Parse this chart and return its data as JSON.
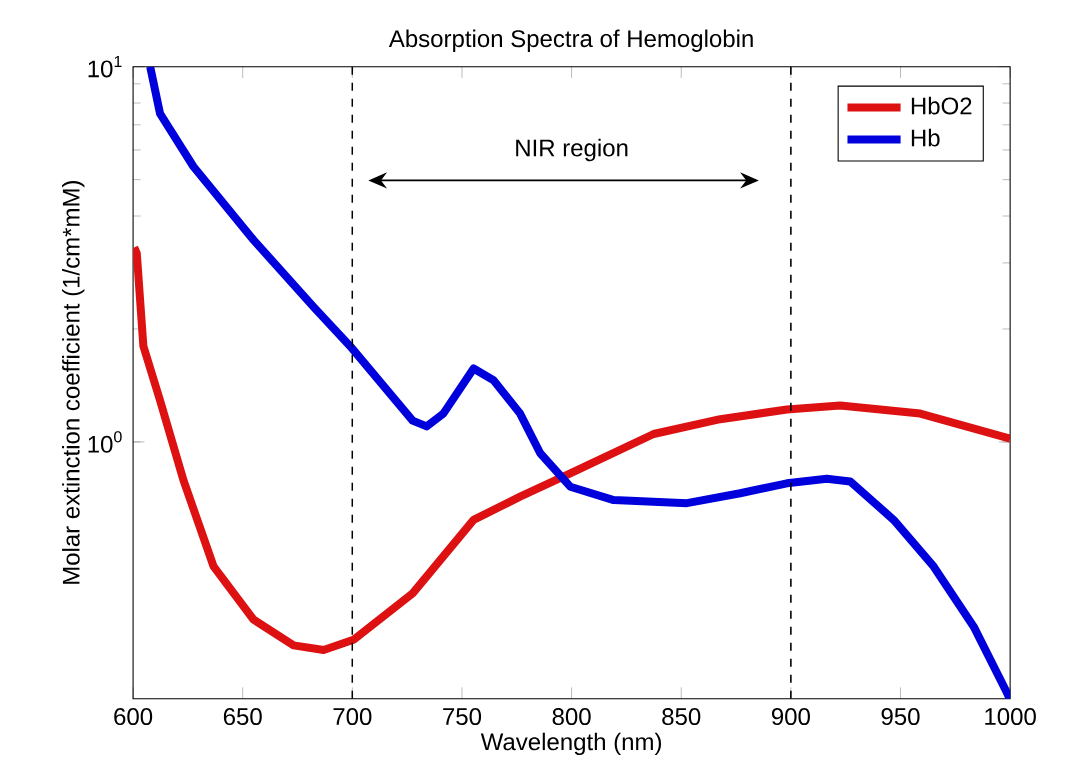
{
  "chart_data": {
    "type": "line",
    "title": "Absorption Spectra of Hemoglobin",
    "xlabel": "Wavelength (nm)",
    "ylabel": "Molar extinction coefficient (1/cm*mM)",
    "log": "y",
    "xlim": [
      600,
      1000
    ],
    "ylim": [
      0.207,
      10
    ],
    "xticks": [
      600,
      650,
      700,
      750,
      800,
      850,
      900,
      950,
      1000
    ],
    "yticks": [
      {
        "value": 1,
        "label": "10$^{0}$"
      },
      {
        "value": 10,
        "label": "10$^{1}$"
      }
    ],
    "legend": "top right",
    "grid": false,
    "marker": "none",
    "line_style": "solid",
    "series": [
      {
        "name": "HbO2",
        "color": "#dd1111",
        "x": [
          600.5,
          601.7,
          604.7,
          612.3,
          623,
          636.7,
          655,
          673.2,
          686.9,
          700.5,
          727.5,
          755.3,
          776.5,
          799.4,
          837.4,
          867.8,
          898.2,
          922.5,
          959,
          1000
        ],
        "values": [
          3.3,
          3.18,
          1.8,
          1.29,
          0.79,
          0.466,
          0.336,
          0.287,
          0.279,
          0.297,
          0.395,
          0.62,
          0.715,
          0.825,
          1.05,
          1.15,
          1.22,
          1.25,
          1.19,
          1.02
        ]
      },
      {
        "name": "Hb",
        "color": "#0000dd",
        "x": [
          607.8,
          612.3,
          627.5,
          655,
          682.3,
          699,
          727.5,
          733.9,
          741.5,
          755.3,
          764.4,
          776.5,
          785.7,
          799.4,
          819.2,
          852.6,
          876.9,
          898.2,
          916.4,
          927.1,
          946.9,
          965.1,
          983.4,
          998.5,
          999.8
        ],
        "values": [
          10,
          7.5,
          5.42,
          3.45,
          2.29,
          1.8,
          1.14,
          1.1,
          1.19,
          1.57,
          1.46,
          1.19,
          0.933,
          0.76,
          0.7,
          0.687,
          0.73,
          0.776,
          0.798,
          0.785,
          0.62,
          0.466,
          0.322,
          0.215,
          0.207
        ]
      }
    ],
    "ref_lines": [
      {
        "axis": "x",
        "value": 700,
        "color": "#000000",
        "line_style": "dashed"
      },
      {
        "axis": "x",
        "value": 900,
        "color": "#000000",
        "line_style": "dashed"
      }
    ],
    "annotations": [
      "NIR region"
    ]
  }
}
